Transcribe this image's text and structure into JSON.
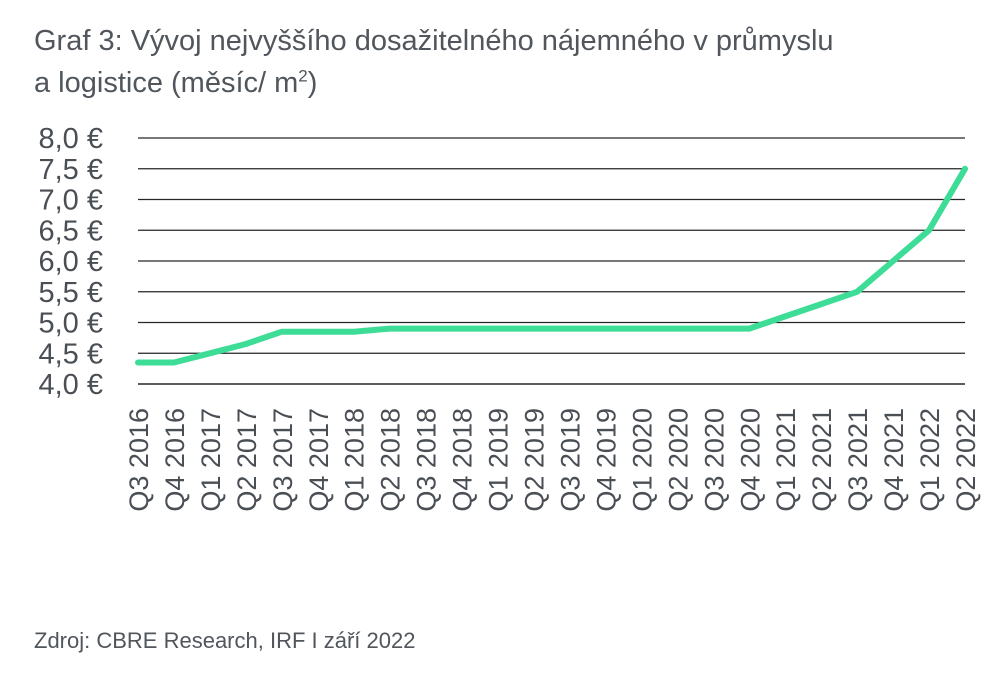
{
  "title_line1": "Graf 3: Vývoj nejvyššího dosažitelného nájemného v průmyslu",
  "title_line2_pre": "a logistice (měsíc/ m",
  "title_line2_sup": "2",
  "title_line2_post": ")",
  "source": "Zdroj: CBRE Research, IRF I září 2022",
  "colors": {
    "line": "#3ddc97",
    "grid": "#262626",
    "text": "#4a4f55"
  },
  "chart_data": {
    "type": "line",
    "title": "Graf 3: Vývoj nejvyššího dosažitelného nájemného v průmyslu a logistice (měsíc/ m2)",
    "xlabel": "",
    "ylabel": "",
    "ylim": [
      4.0,
      8.0
    ],
    "y_ticks": [
      4.0,
      4.5,
      5.0,
      5.5,
      6.0,
      6.5,
      7.0,
      7.5,
      8.0
    ],
    "y_tick_labels": [
      "4,0 €",
      "4,5 €",
      "5,0 €",
      "5,5 €",
      "6,0 €",
      "6,5 €",
      "7,0 €",
      "7,5 €",
      "8,0 €"
    ],
    "grid": true,
    "legend": "none",
    "categories": [
      "Q3 2016",
      "Q4 2016",
      "Q1 2017",
      "Q2 2017",
      "Q3 2017",
      "Q4 2017",
      "Q1 2018",
      "Q2 2018",
      "Q3 2018",
      "Q4 2018",
      "Q1 2019",
      "Q2 2019",
      "Q3 2019",
      "Q4 2019",
      "Q1 2020",
      "Q2 2020",
      "Q3 2020",
      "Q4 2020",
      "Q1 2021",
      "Q2 2021",
      "Q3 2021",
      "Q4 2021",
      "Q1 2022",
      "Q2 2022"
    ],
    "series": [
      {
        "values": [
          4.35,
          4.35,
          4.5,
          4.65,
          4.85,
          4.85,
          4.85,
          4.9,
          4.9,
          4.9,
          4.9,
          4.9,
          4.9,
          4.9,
          4.9,
          4.9,
          4.9,
          4.9,
          5.1,
          5.3,
          5.5,
          6.0,
          6.5,
          7.5
        ]
      }
    ]
  }
}
